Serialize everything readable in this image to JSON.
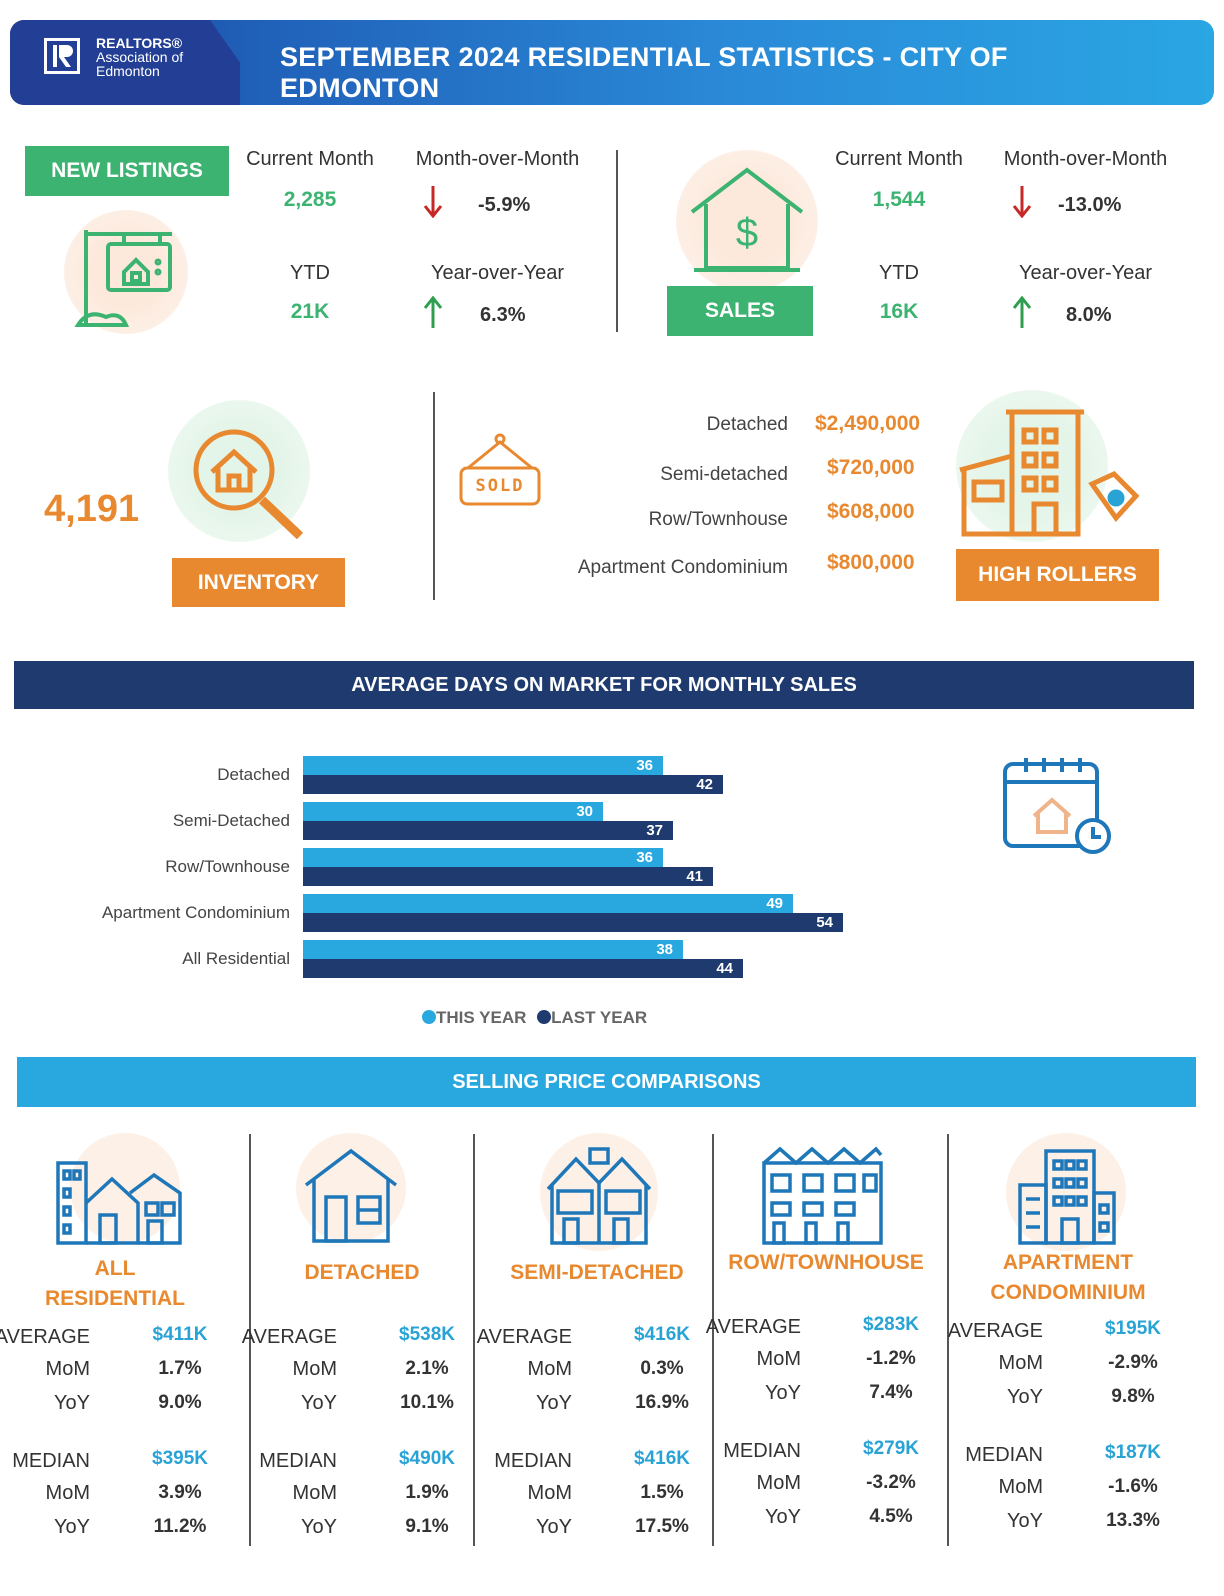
{
  "header": {
    "logo_line1": "REALTORS®",
    "logo_line2": "Association of",
    "logo_line3": "Edmonton",
    "title": "SEPTEMBER 2024 RESIDENTIAL STATISTICS - CITY OF EDMONTON"
  },
  "new_listings": {
    "badge": "NEW LISTINGS",
    "current_month_label": "Current Month",
    "current_month_value": "2,285",
    "mom_label": "Month-over-Month",
    "mom_value": "-5.9%",
    "ytd_label": "YTD",
    "ytd_value": "21K",
    "yoy_label": "Year-over-Year",
    "yoy_value": "6.3%"
  },
  "sales": {
    "badge": "SALES",
    "current_month_label": "Current Month",
    "current_month_value": "1,544",
    "mom_label": "Month-over-Month",
    "mom_value": "-13.0%",
    "ytd_label": "YTD",
    "ytd_value": "16K",
    "yoy_label": "Year-over-Year",
    "yoy_value": "8.0%"
  },
  "inventory": {
    "value": "4,191",
    "badge": "INVENTORY"
  },
  "high_rollers": {
    "sign_text": "SOLD",
    "badge": "HIGH ROLLERS",
    "rows": [
      {
        "label": "Detached",
        "value": "$2,490,000"
      },
      {
        "label": "Semi-detached",
        "value": "$720,000"
      },
      {
        "label": "Row/Townhouse",
        "value": "$608,000"
      },
      {
        "label": "Apartment Condominium",
        "value": "$800,000"
      }
    ]
  },
  "dom_section": {
    "title": "AVERAGE DAYS ON MARKET FOR MONTHLY SALES",
    "legend_this": "THIS YEAR",
    "legend_last": "LAST YEAR"
  },
  "chart_data": {
    "type": "bar",
    "orientation": "horizontal",
    "categories": [
      "Detached",
      "Semi-Detached",
      "Row/Townhouse",
      "Apartment Condominium",
      "All Residential"
    ],
    "series": [
      {
        "name": "THIS YEAR",
        "values": [
          36,
          30,
          36,
          49,
          38
        ],
        "color": "#29a8e0"
      },
      {
        "name": "LAST YEAR",
        "values": [
          42,
          37,
          41,
          54,
          44
        ],
        "color": "#1e3a6e"
      }
    ],
    "legend_position": "bottom"
  },
  "price_section": {
    "title": "SELLING PRICE COMPARISONS",
    "average_label": "AVERAGE",
    "median_label": "MEDIAN",
    "mom_label": "MoM",
    "yoy_label": "YoY",
    "columns": [
      {
        "title1": "ALL",
        "title2": "RESIDENTIAL",
        "avg": "$411K",
        "avg_mom": "1.7%",
        "avg_yoy": "9.0%",
        "med": "$395K",
        "med_mom": "3.9%",
        "med_yoy": "11.2%"
      },
      {
        "title1": "DETACHED",
        "title2": "",
        "avg": "$538K",
        "avg_mom": "2.1%",
        "avg_yoy": "10.1%",
        "med": "$490K",
        "med_mom": "1.9%",
        "med_yoy": "9.1%"
      },
      {
        "title1": "SEMI-DETACHED",
        "title2": "",
        "avg": "$416K",
        "avg_mom": "0.3%",
        "avg_yoy": "16.9%",
        "med": "$416K",
        "med_mom": "1.5%",
        "med_yoy": "17.5%"
      },
      {
        "title1": "ROW/TOWNHOUSE",
        "title2": "",
        "avg": "$283K",
        "avg_mom": "-1.2%",
        "avg_yoy": "7.4%",
        "med": "$279K",
        "med_mom": "-3.2%",
        "med_yoy": "4.5%"
      },
      {
        "title1": "APARTMENT",
        "title2": "CONDOMINIUM",
        "avg": "$195K",
        "avg_mom": "-2.9%",
        "avg_yoy": "9.8%",
        "med": "$187K",
        "med_mom": "-1.6%",
        "med_yoy": "13.3%"
      }
    ]
  },
  "colors": {
    "green": "#3cb371",
    "orange": "#e8892f",
    "navy": "#1e3a6e",
    "blue": "#29a8e0",
    "arrow_down": "#c62828",
    "arrow_up": "#2e9e4f"
  }
}
